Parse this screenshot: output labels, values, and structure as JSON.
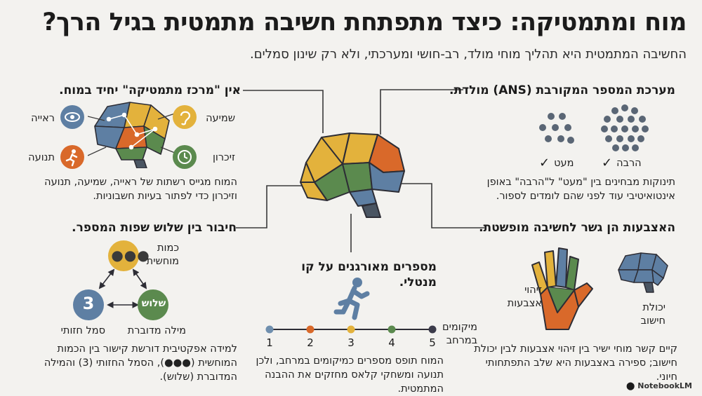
{
  "header": {
    "title": "מוח ומתמטיקה: כיצד מתפתחת חשיבה מתמטית בגיל הרך?",
    "subtitle": "החשיבה המתמטית היא תהליך מוחי מולד, רב-חושי ומערכתי, ולא רק שינון סמלים."
  },
  "ans": {
    "title": "מערכת המספר המקורבת (ANS) מולדת.",
    "many_label": "הרבה",
    "few_label": "מעט",
    "body": "תינוקות מבחינים בין \"מעט\" ל\"הרבה\" באופן אינטואיטיבי עוד לפני שהם לומדים לספור."
  },
  "network": {
    "title": "אין \"מרכז מתמטיקה\" יחיד במוח.",
    "labels": {
      "vision": "ראייה",
      "hearing": "שמיעה",
      "movement": "תנועה",
      "memory": "זיכרון"
    },
    "body": "המוח מגייס רשתות של ראייה, שמיעה, תנועה וזיכרון כדי לפתור בעיות חשבוניות."
  },
  "fingers": {
    "title": "האצבעות הן גשר לחשיבה מופשטת.",
    "finger_label": "זיהוי אצבעות",
    "calc_label": "יכולת חישוב",
    "body": "קיים קשר מוחי ישיר בין זיהוי אצבעות לבין יכולת חישוב; ספירה באצבעות היא שלב התפתחותי חיוני."
  },
  "languages": {
    "title": "חיבור בין שלוש שפות המספר.",
    "quantity_label": "כמות מוחשית",
    "word_circle": "שלוש",
    "digit_circle": "3",
    "word_label": "מילה מדוברת",
    "symbol_label": "סמל חזותי",
    "body": "למידה אפקטיבית דורשת קישור בין הכמות המוחשית (●●●), הסמל החזותי (3) והמילה המדוברת (שלוש)."
  },
  "numberline": {
    "title": "מספרים מאורגנים על קו מנטלי.",
    "axis_label": "מיקומים במרחב",
    "ticks": [
      "1",
      "2",
      "3",
      "4",
      "5"
    ],
    "tick_colors": [
      "#6f8fae",
      "#d9692a",
      "#e3b23c",
      "#5b8a4e",
      "#3b3b4a"
    ],
    "body": "המוח תופס מספרים כמיקומים במרחב, ולכן תנועה ומשחקי קלאס מחזקים את ההבנה המתמטית."
  },
  "colors": {
    "blue": "#5e7fa3",
    "orange": "#d9692a",
    "yellow": "#e3b23c",
    "green": "#5b8a4e",
    "gray": "#4a5562"
  },
  "footer": {
    "brand": "NotebookLM"
  }
}
